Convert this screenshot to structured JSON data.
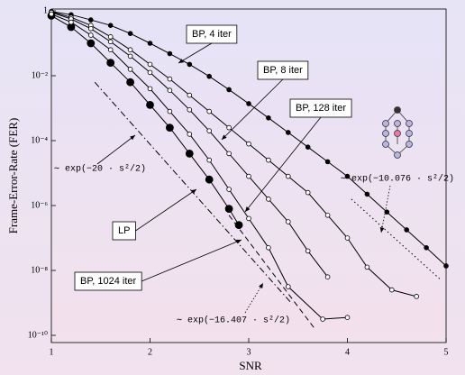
{
  "chart_data": {
    "type": "line",
    "xlabel": "SNR",
    "ylabel": "Frame-Error-Rate (FER)",
    "xlim": [
      1,
      5
    ],
    "ylim": [
      1e-10,
      1
    ],
    "yscale": "log",
    "xticks": [
      1,
      2,
      3,
      4,
      5
    ],
    "yticks": [
      1,
      {
        "value": 0.01,
        "label": "10⁻²"
      },
      {
        "value": 0.0001,
        "label": "10⁻⁴"
      },
      {
        "value": 1e-06,
        "label": "10⁻⁶"
      },
      {
        "value": 1e-08,
        "label": "10⁻⁸"
      },
      {
        "value": 1e-10,
        "label": "10⁻¹⁰"
      }
    ],
    "series": [
      {
        "name": "BP, 4 iter",
        "color": "#000000",
        "marker": "filled-small",
        "dash": "solid",
        "x": [
          1,
          1.2,
          1.4,
          1.6,
          1.8,
          2,
          2.2,
          2.4,
          2.6,
          2.8,
          3,
          3.2,
          3.4,
          3.6,
          3.8,
          4,
          4.2,
          4.4,
          4.6,
          4.8,
          5
        ],
        "values": [
          0.955,
          0.759,
          0.525,
          0.355,
          0.2,
          0.1,
          0.0479,
          0.0224,
          0.00955,
          0.00372,
          0.00138,
          0.000501,
          0.000178,
          6.31e-05,
          2.24e-05,
          7.94e-06,
          2.24e-06,
          6.31e-07,
          1.78e-07,
          5.01e-08,
          1.38e-08
        ]
      },
      {
        "name": "BP, 8 iter",
        "color": "#000000",
        "marker": "open-small",
        "dash": "solid",
        "x": [
          1,
          1.2,
          1.4,
          1.6,
          1.8,
          2,
          2.2,
          2.4,
          2.6,
          2.8,
          3,
          3.2,
          3.4,
          3.6,
          3.8,
          4,
          4.2,
          4.45,
          4.7
        ],
        "values": [
          0.933,
          0.631,
          0.355,
          0.158,
          0.0631,
          0.0224,
          0.00794,
          0.00251,
          0.000794,
          0.000251,
          7.94e-05,
          2.51e-05,
          7.94e-06,
          2.51e-06,
          5.01e-07,
          1e-07,
          1.26e-08,
          2.51e-09,
          1.58e-09
        ]
      },
      {
        "name": "BP, 128 iter",
        "color": "#000000",
        "marker": "open-small",
        "dash": "solid",
        "x": [
          1,
          1.2,
          1.4,
          1.6,
          1.8,
          2,
          2.2,
          2.4,
          2.6,
          2.8,
          3,
          3.2,
          3.4,
          3.6,
          3.8
        ],
        "values": [
          0.891,
          0.562,
          0.282,
          0.112,
          0.0398,
          0.0126,
          0.00355,
          0.000891,
          0.0002,
          3.98e-05,
          7.94e-06,
          1.58e-06,
          3.16e-07,
          3.98e-08,
          6.31e-09
        ]
      },
      {
        "name": "LP",
        "color": "#000000",
        "marker": "filled-large",
        "dash": "solid",
        "x": [
          1,
          1.2,
          1.4,
          1.6,
          1.8,
          2,
          2.2,
          2.4,
          2.6,
          2.8,
          2.9
        ],
        "values": [
          0.708,
          0.316,
          0.1,
          0.0251,
          0.00631,
          0.00126,
          0.000251,
          3.98e-05,
          6.31e-06,
          7.94e-07,
          2.51e-07
        ]
      },
      {
        "name": "BP, 1024 iter",
        "color": "#000000",
        "marker": "open-small",
        "dash": "solid",
        "x": [
          1,
          1.2,
          1.4,
          1.6,
          1.8,
          2,
          2.2,
          2.4,
          2.6,
          2.8,
          3,
          3.2,
          3.4,
          3.75,
          4
        ],
        "values": [
          0.794,
          0.447,
          0.178,
          0.0631,
          0.0158,
          0.00398,
          0.000794,
          0.000158,
          2.51e-05,
          3.16e-06,
          3.98e-07,
          5.01e-08,
          3.16e-09,
          3.16e-10,
          3.55e-10
        ]
      },
      {
        "name": "∼ exp(−20 · s²/2)",
        "color": "#000000",
        "marker": "none",
        "dash": "dashdot",
        "x": [
          1.44,
          3.43
        ],
        "values": [
          0.00631,
          1e-09
        ]
      },
      {
        "name": "∼ exp(−10.076 · s²/2)",
        "color": "#000000",
        "marker": "none",
        "dash": "dotted",
        "x": [
          4.04,
          4.95
        ],
        "values": [
          1.58e-06,
          5.01e-09
        ]
      },
      {
        "name": "∼ exp(−16.407 · s²/2)",
        "color": "#000000",
        "marker": "none",
        "dash": "dashed",
        "x": [
          2.8,
          3.67
        ],
        "values": [
          5.01e-07,
          1.58e-10
        ]
      }
    ]
  }
}
